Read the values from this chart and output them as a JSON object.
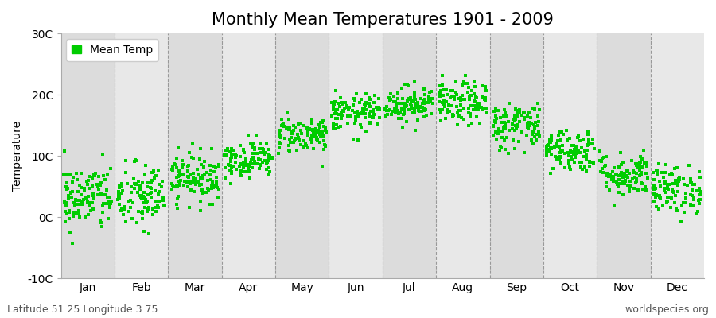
{
  "title": "Monthly Mean Temperatures 1901 - 2009",
  "ylabel": "Temperature",
  "ylim": [
    -10,
    30
  ],
  "yticks": [
    -10,
    0,
    10,
    20,
    30
  ],
  "ytick_labels": [
    "-10C",
    "0C",
    "10C",
    "20C",
    "30C"
  ],
  "months": [
    "Jan",
    "Feb",
    "Mar",
    "Apr",
    "May",
    "Jun",
    "Jul",
    "Aug",
    "Sep",
    "Oct",
    "Nov",
    "Dec"
  ],
  "month_means": [
    3.2,
    3.2,
    6.5,
    9.5,
    13.5,
    17.0,
    18.5,
    18.5,
    15.0,
    11.0,
    7.0,
    4.5
  ],
  "month_stds": [
    2.8,
    2.8,
    2.0,
    1.5,
    1.5,
    1.5,
    1.5,
    1.8,
    2.0,
    1.8,
    1.8,
    2.0
  ],
  "n_years": 109,
  "dot_color": "#00cc00",
  "dot_size": 6,
  "band_color_odd": "#dcdcdc",
  "band_color_even": "#e8e8e8",
  "title_fontsize": 15,
  "axis_fontsize": 10,
  "tick_fontsize": 10,
  "legend_label": "Mean Temp",
  "footer_left": "Latitude 51.25 Longitude 3.75",
  "footer_right": "worldspecies.org",
  "footer_fontsize": 9,
  "dashed_line_color": "#999999",
  "fig_bg_color": "#ffffff",
  "plot_bg_color": "#e8e8e8"
}
